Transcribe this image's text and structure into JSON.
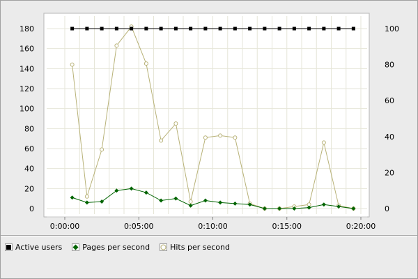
{
  "chart_data": {
    "type": "line",
    "title": "",
    "xlabel": "",
    "ylabel": "",
    "x_ticks": [
      "0:00:00",
      "0:05:00",
      "0:10:00",
      "0:15:00",
      "0:20:00"
    ],
    "x_tick_seconds": [
      0,
      300,
      600,
      900,
      1200
    ],
    "xlim": [
      0,
      1200
    ],
    "ylim": [
      0,
      180
    ],
    "y_ticks": [
      0,
      20,
      40,
      60,
      80,
      100,
      120,
      140,
      160,
      180
    ],
    "y2lim": [
      0,
      100
    ],
    "y2_ticks": [
      0,
      20,
      40,
      60,
      80,
      100
    ],
    "x": [
      30,
      90,
      150,
      210,
      270,
      330,
      390,
      450,
      510,
      570,
      630,
      690,
      750,
      810,
      870,
      930,
      990,
      1050,
      1110,
      1170
    ],
    "series": [
      {
        "name": "Active users",
        "axis": "right",
        "color": "#000000",
        "marker": "square",
        "values": [
          100,
          100,
          100,
          100,
          100,
          100,
          100,
          100,
          100,
          100,
          100,
          100,
          100,
          100,
          100,
          100,
          100,
          100,
          100,
          100
        ]
      },
      {
        "name": "Pages per second",
        "axis": "left",
        "color": "#006400",
        "marker": "diamond",
        "values": [
          11,
          6,
          7,
          18,
          20,
          16,
          8,
          10,
          3,
          8,
          6,
          5,
          4,
          0,
          0,
          0,
          1,
          4,
          2,
          0
        ]
      },
      {
        "name": "Hits per second",
        "axis": "left",
        "color": "#b8b278",
        "marker": "circle",
        "values": [
          144,
          12,
          59,
          163,
          182,
          145,
          68,
          85,
          7,
          71,
          73,
          71,
          5,
          0,
          0,
          2,
          4,
          66,
          3,
          0
        ]
      }
    ],
    "legend_position": "bottom-left",
    "grid": true
  },
  "legend": {
    "items": [
      {
        "label": "Active users",
        "icon": "square-marker-icon"
      },
      {
        "label": "Pages per second",
        "icon": "diamond-marker-icon"
      },
      {
        "label": "Hits per second",
        "icon": "circle-marker-icon"
      }
    ]
  }
}
